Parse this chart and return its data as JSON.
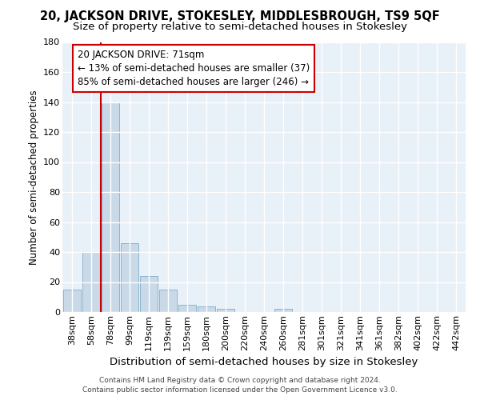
{
  "title": "20, JACKSON DRIVE, STOKESLEY, MIDDLESBROUGH, TS9 5QF",
  "subtitle": "Size of property relative to semi-detached houses in Stokesley",
  "xlabel": "Distribution of semi-detached houses by size in Stokesley",
  "ylabel": "Number of semi-detached properties",
  "categories": [
    "38sqm",
    "58sqm",
    "78sqm",
    "99sqm",
    "119sqm",
    "139sqm",
    "159sqm",
    "180sqm",
    "200sqm",
    "220sqm",
    "240sqm",
    "260sqm",
    "281sqm",
    "301sqm",
    "321sqm",
    "341sqm",
    "361sqm",
    "382sqm",
    "402sqm",
    "422sqm",
    "442sqm"
  ],
  "values": [
    15,
    40,
    140,
    46,
    24,
    15,
    5,
    4,
    2,
    0,
    0,
    2,
    0,
    0,
    0,
    0,
    0,
    0,
    0,
    0,
    0
  ],
  "bar_color": "#c9d9e8",
  "bar_edge_color": "#8ab4cc",
  "red_line_color": "#cc0000",
  "red_line_bar_index": 2,
  "annotation_title": "20 JACKSON DRIVE: 71sqm",
  "annotation_line1": "← 13% of semi-detached houses are smaller (37)",
  "annotation_line2": "85% of semi-detached houses are larger (246) →",
  "annotation_box_color": "#ffffff",
  "annotation_box_edge": "#cc0000",
  "footer1": "Contains HM Land Registry data © Crown copyright and database right 2024.",
  "footer2": "Contains public sector information licensed under the Open Government Licence v3.0.",
  "ylim": [
    0,
    180
  ],
  "yticks": [
    0,
    20,
    40,
    60,
    80,
    100,
    120,
    140,
    160,
    180
  ],
  "bg_color": "#e8f0f8",
  "grid_color": "#ffffff",
  "title_fontsize": 10.5,
  "subtitle_fontsize": 9.5,
  "ylabel_fontsize": 8.5,
  "xlabel_fontsize": 9.5,
  "footer_fontsize": 6.5,
  "annotation_fontsize": 8.5,
  "tick_fontsize": 8
}
